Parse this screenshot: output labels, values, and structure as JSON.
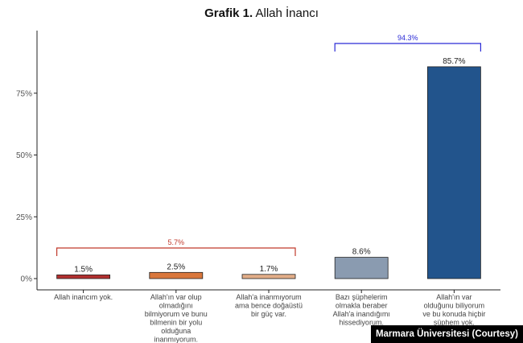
{
  "title": {
    "bold": "Grafik 1.",
    "rest": "Allah İnancı"
  },
  "credit": "Marmara Üniversitesi (Courtesy)",
  "chart_data": {
    "type": "bar",
    "title": "Grafik 1. Allah İnancı",
    "xlabel": "",
    "ylabel": "",
    "ylim": [
      0,
      100
    ],
    "y_ticks": [
      0,
      25,
      50,
      75
    ],
    "y_tick_labels": [
      "0%",
      "25%",
      "50%",
      "75%"
    ],
    "grid": false,
    "categories": [
      [
        "Allah inancım yok."
      ],
      [
        "Allah'ın var olup",
        "olmadığını",
        "bilmiyorum ve bunu",
        "bilmenin bir yolu",
        "olduğuna",
        "inanmıyorum."
      ],
      [
        "Allah'a inanmıyorum",
        "ama bence doğaüstü",
        "bir güç var."
      ],
      [
        "Bazı şüphelerim",
        "olmakla beraber",
        "Allah'a inandığımı",
        "hissediyorum."
      ],
      [
        "Allah'ın var",
        "olduğunu biliyorum",
        "ve bu konuda hiçbir",
        "şüphem yok."
      ]
    ],
    "values": [
      1.5,
      2.5,
      1.7,
      8.6,
      85.7
    ],
    "value_labels": [
      "1.5%",
      "2.5%",
      "1.7%",
      "8.6%",
      "85.7%"
    ],
    "colors": [
      "#b2302f",
      "#d9773c",
      "#e2ad88",
      "#8a9bb0",
      "#22548c"
    ],
    "groups": [
      {
        "label": "5.7%",
        "from": 0,
        "to": 2,
        "color": "#c0392b"
      },
      {
        "label": "94.3%",
        "from": 3,
        "to": 4,
        "color": "#2a2ad6"
      }
    ]
  }
}
